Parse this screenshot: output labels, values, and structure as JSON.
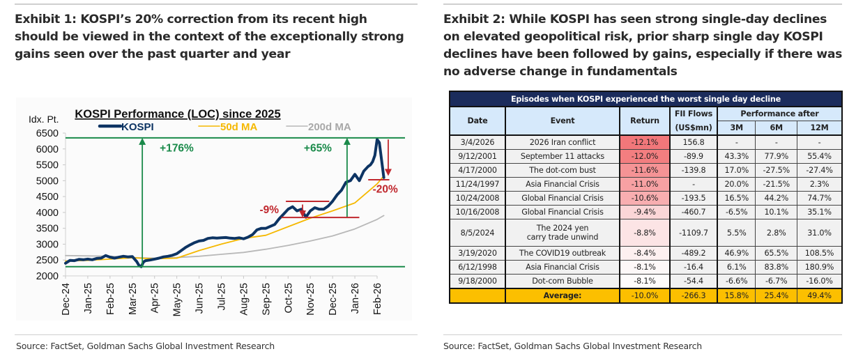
{
  "exhibit1": {
    "title": "Exhibit 1: KOSPI’s 20% correction from its recent high should be viewed in the context of the exceptionally strong gains seen over the past quarter and year",
    "source": "Source: FactSet, Goldman Sachs Global Investment Research"
  },
  "exhibit2": {
    "title": "Exhibit 2: While KOSPI has seen strong single-day declines on elevated geopolitical risk, prior sharp single day KOSPI declines have been followed by gains, especially if there was no adverse change in fundamentals",
    "source": "Source: FactSet, Goldman Sachs Global Investment Research"
  },
  "chart_data": {
    "type": "line",
    "title": "KOSPI Performance (LOC) since 2025",
    "ylabel": "Idx. Pt.",
    "xlabel": "",
    "ylim": [
      2000,
      6500
    ],
    "yticks": [
      "6500",
      "6000",
      "5500",
      "5000",
      "4500",
      "4000",
      "3500",
      "3000",
      "2500",
      "2000"
    ],
    "xticks": [
      "Dec-24",
      "Jan-25",
      "Feb-25",
      "Mar-25",
      "Apr-25",
      "May-25",
      "Jun-25",
      "Jul-25",
      "Aug-25",
      "Sep-25",
      "Oct-25",
      "Nov-25",
      "Dec-25",
      "Jan-26",
      "Feb-26"
    ],
    "grid": false,
    "legend_position": "top-center",
    "colors": {
      "kospi": "#0d3463",
      "ma50": "#f5b800",
      "ma200": "#b8b8b8",
      "green": "#1a8a4a",
      "red": "#c0272d"
    },
    "series": [
      {
        "name": "KOSPI",
        "x_month_index": [
          0,
          0.2,
          0.4,
          0.6,
          0.8,
          1.0,
          1.2,
          1.4,
          1.6,
          1.8,
          2.0,
          2.2,
          2.4,
          2.6,
          2.8,
          3.0,
          3.2,
          3.3,
          3.4,
          3.5,
          3.6,
          3.8,
          4.0,
          4.2,
          4.4,
          4.6,
          4.8,
          5.0,
          5.2,
          5.4,
          5.6,
          5.8,
          6.0,
          6.2,
          6.4,
          6.6,
          6.8,
          7.0,
          7.2,
          7.4,
          7.6,
          7.8,
          8.0,
          8.2,
          8.4,
          8.6,
          8.8,
          9.0,
          9.2,
          9.4,
          9.6,
          9.8,
          10.0,
          10.2,
          10.4,
          10.6,
          10.8,
          11.0,
          11.2,
          11.4,
          11.6,
          11.8,
          12.0,
          12.2,
          12.4,
          12.6,
          12.8,
          13.0,
          13.2,
          13.4,
          13.6,
          13.7,
          13.8,
          13.9,
          14.0,
          14.1,
          14.2,
          14.3
        ],
        "values": [
          2400,
          2490,
          2480,
          2520,
          2510,
          2530,
          2510,
          2550,
          2560,
          2640,
          2590,
          2560,
          2590,
          2620,
          2600,
          2610,
          2450,
          2330,
          2290,
          2440,
          2480,
          2500,
          2530,
          2560,
          2600,
          2620,
          2650,
          2700,
          2800,
          2900,
          2980,
          3050,
          3100,
          3120,
          3180,
          3200,
          3190,
          3200,
          3210,
          3190,
          3180,
          3200,
          3170,
          3220,
          3300,
          3450,
          3500,
          3500,
          3560,
          3620,
          3800,
          3950,
          4100,
          4180,
          4050,
          4100,
          3850,
          4050,
          4150,
          4100,
          4100,
          4200,
          4350,
          4550,
          4700,
          4950,
          5000,
          5200,
          5000,
          5300,
          5450,
          5500,
          5600,
          5800,
          6300,
          6200,
          5650,
          5100
        ]
      },
      {
        "name": "50d MA",
        "x_month_index": [
          0,
          1,
          2,
          3,
          4,
          5,
          6,
          7,
          8,
          9,
          10,
          11,
          12,
          13,
          14,
          14.3
        ],
        "values": [
          2470,
          2490,
          2530,
          2570,
          2540,
          2560,
          2800,
          3000,
          3180,
          3280,
          3550,
          3820,
          4050,
          4300,
          4900,
          5150
        ]
      },
      {
        "name": "200d MA",
        "x_month_index": [
          0,
          1,
          2,
          3,
          4,
          5,
          6,
          7,
          8,
          9,
          10,
          11,
          12,
          13,
          14,
          14.3
        ],
        "values": [
          2640,
          2630,
          2620,
          2580,
          2560,
          2580,
          2620,
          2680,
          2740,
          2840,
          2960,
          3100,
          3260,
          3480,
          3780,
          3900
        ]
      }
    ],
    "annotations": [
      {
        "text": "+176%",
        "color": "green",
        "type": "up-arrow",
        "from": 2290,
        "to": 6350
      },
      {
        "text": "+65%",
        "color": "green",
        "type": "up-arrow",
        "from": 3840,
        "to": 6350
      },
      {
        "text": "-9%",
        "color": "red",
        "type": "down-arrow",
        "from": 4200,
        "to": 3840
      },
      {
        "text": "-20%",
        "color": "red",
        "type": "down-arrow",
        "from": 6350,
        "to": 5070
      }
    ]
  },
  "table": {
    "title": "Episodes when KOSPI experienced the worst single day decline",
    "headers": {
      "date": "Date",
      "event": "Event",
      "return": "Return",
      "fii1": "FII Flows",
      "fii2": "(US$mn)",
      "perf": "Performance after",
      "m3": "3M",
      "m6": "6M",
      "m12": "12M"
    },
    "rows": [
      {
        "date": "3/4/2026",
        "event": "2026 Iran conflict",
        "return": "-12.1%",
        "fii": "156.8",
        "m3": "-",
        "m6": "-",
        "m12": "-",
        "heat": "#f2777a"
      },
      {
        "date": "9/12/2001",
        "event": "September 11 attacks",
        "return": "-12.0%",
        "fii": "-89.9",
        "m3": "43.3%",
        "m6": "77.9%",
        "m12": "55.4%",
        "heat": "#f37e80"
      },
      {
        "date": "4/17/2000",
        "event": "The dot-com bust",
        "return": "-11.6%",
        "fii": "-139.8",
        "m3": "17.0%",
        "m6": "-27.5%",
        "m12": "-27.4%",
        "heat": "#f59395"
      },
      {
        "date": "11/24/1997",
        "event": "Asia Financial Crisis",
        "return": "-11.0%",
        "fii": "-",
        "m3": "20.0%",
        "m6": "-21.5%",
        "m12": "2.3%",
        "heat": "#f7a1a3"
      },
      {
        "date": "10/24/2008",
        "event": "Global Financial Crisis",
        "return": "-10.6%",
        "fii": "-193.5",
        "m3": "16.5%",
        "m6": "44.2%",
        "m12": "74.7%",
        "heat": "#f8aeb0"
      },
      {
        "date": "10/16/2008",
        "event": "Global Financial Crisis",
        "return": "-9.4%",
        "fii": "-460.7",
        "m3": "-6.5%",
        "m6": "10.1%",
        "m12": "35.1%",
        "heat": "#fbd6d7"
      },
      {
        "date": "8/5/2024",
        "event": "The 2024 yen carry trade unwind",
        "event_line1": "The 2024 yen",
        "event_line2": "carry trade unwind",
        "return": "-8.8%",
        "fii": "-1109.7",
        "m3": "5.5%",
        "m6": "2.8%",
        "m12": "31.0%",
        "heat": "#fce4e5"
      },
      {
        "date": "3/19/2020",
        "event": "The COVID19 outbreak",
        "return": "-8.4%",
        "fii": "-489.2",
        "m3": "46.9%",
        "m6": "65.5%",
        "m12": "108.5%",
        "heat": "#fdf0f0"
      },
      {
        "date": "6/12/1998",
        "event": "Asia Financial Crisis",
        "return": "-8.1%",
        "fii": "-16.4",
        "m3": "6.1%",
        "m6": "83.8%",
        "m12": "180.9%",
        "heat": "#fdf8f8"
      },
      {
        "date": "9/18/2000",
        "event": "Dot-com Bubble",
        "return": "-8.1%",
        "fii": "-54.4",
        "m3": "-6.6%",
        "m6": "-6.7%",
        "m12": "-16.0%",
        "heat": "#fefcfc"
      }
    ],
    "average": {
      "label": "Average:",
      "return": "-10.0%",
      "fii": "-266.3",
      "m3": "15.8%",
      "m6": "25.4%",
      "m12": "49.4%"
    }
  }
}
